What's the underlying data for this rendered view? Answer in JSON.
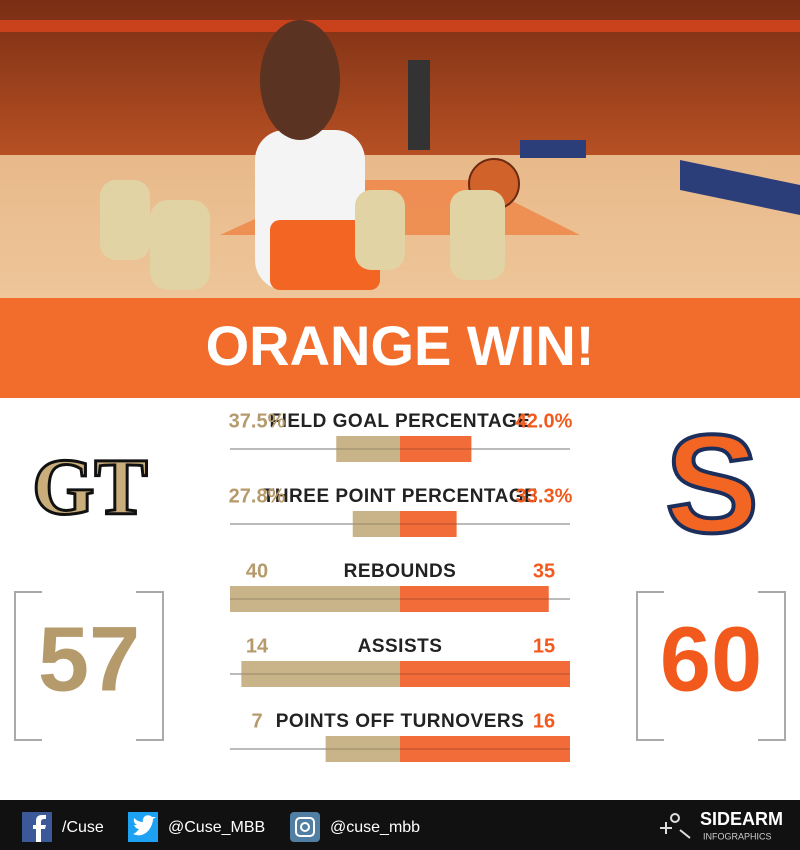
{
  "banner": {
    "title": "ORANGE WIN!"
  },
  "teams": {
    "away": {
      "logo": "GT",
      "score": 57
    },
    "home": {
      "logo": "S",
      "score": 60
    }
  },
  "stats": [
    {
      "label": "FIELD GOAL PERCENTAGE",
      "values": [
        37.5,
        42.0
      ],
      "value_labels": [
        "37.5%",
        "42.0%"
      ],
      "range": [
        0,
        100
      ]
    },
    {
      "label": "THREE POINT PERCENTAGE",
      "values": [
        27.8,
        33.3
      ],
      "value_labels": [
        "27.8%",
        "33.3%"
      ],
      "range": [
        0,
        100
      ]
    },
    {
      "label": "REBOUNDS",
      "values": [
        40,
        35
      ]
    },
    {
      "label": "ASSISTS",
      "values": [
        14,
        15
      ]
    },
    {
      "label": "POINTS OFF TURNOVERS",
      "values": [
        7,
        16
      ]
    }
  ],
  "footer": {
    "links": [
      "/Cuse",
      "@Cuse_MBB",
      "@cuse_mbb"
    ],
    "brand": "SIDEARM",
    "brand_sub": "INFOGRAPHICS"
  }
}
